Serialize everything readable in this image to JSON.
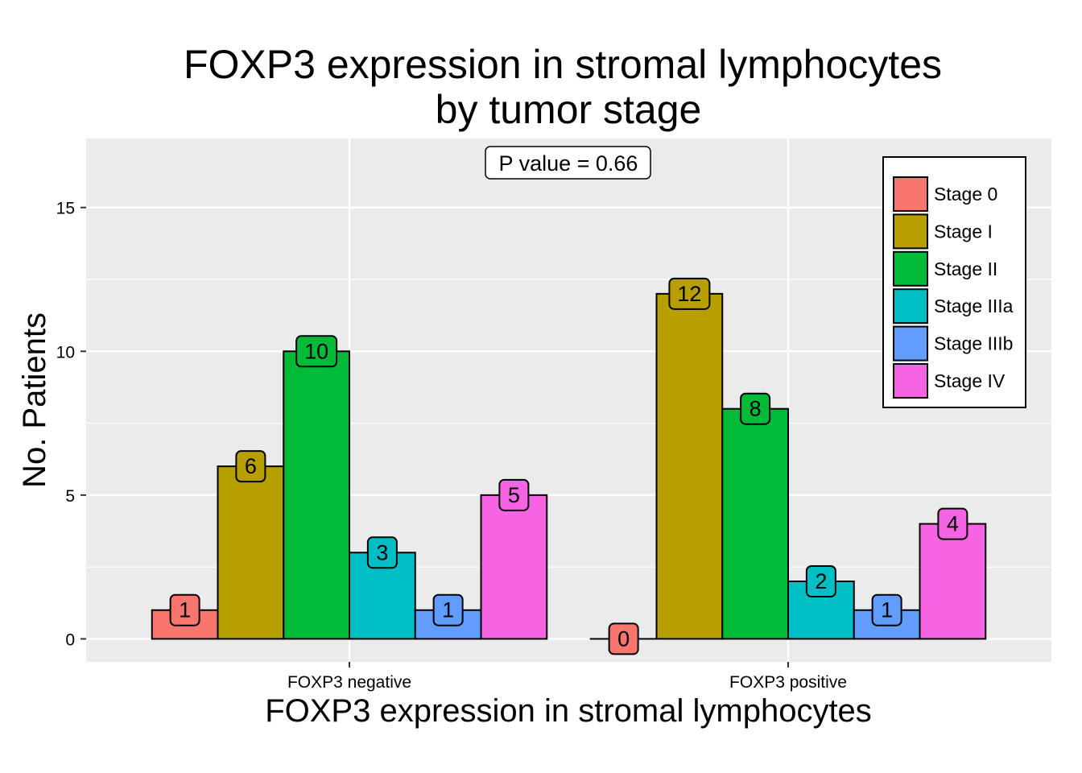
{
  "chart_data": {
    "type": "bar",
    "title_lines": [
      "FOXP3 expression in stromal lymphocytes",
      "by tumor stage"
    ],
    "xlabel": "FOXP3 expression in stromal lymphocytes",
    "ylabel": "No. Patients",
    "categories": [
      "FOXP3 negative",
      "FOXP3 positive"
    ],
    "series": [
      {
        "name": "Stage 0",
        "color": "#F8766D",
        "values": [
          1,
          0
        ]
      },
      {
        "name": "Stage I",
        "color": "#B79F00",
        "values": [
          6,
          12
        ]
      },
      {
        "name": "Stage II",
        "color": "#00BA38",
        "values": [
          10,
          8
        ]
      },
      {
        "name": "Stage IIIa",
        "color": "#00BFC4",
        "values": [
          3,
          2
        ]
      },
      {
        "name": "Stage IIIb",
        "color": "#619CFF",
        "values": [
          1,
          1
        ]
      },
      {
        "name": "Stage IV",
        "color": "#F564E3",
        "values": [
          5,
          4
        ]
      }
    ],
    "ylim": [
      -0.8,
      17.4
    ],
    "yticks": [
      0,
      5,
      10,
      15
    ],
    "annotation": "P value = 0.66",
    "legend_position": "top-right",
    "grid": true,
    "panel_background": "#EBEBEB"
  }
}
